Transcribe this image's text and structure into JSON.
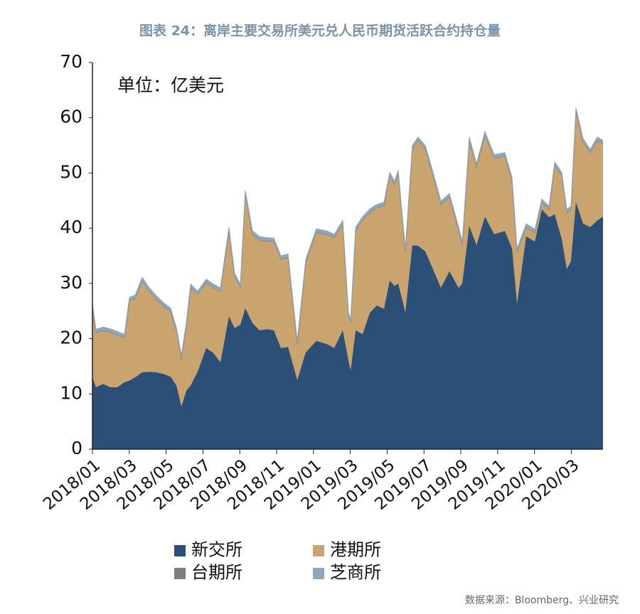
{
  "chart_data": {
    "type": "stacked_area",
    "title": "图表 24：离岸主要交易所美元兑人民币期货活跃合约持仓量",
    "annotation": "单位：亿美元",
    "source": "数据来源：Bloomberg、兴业研究",
    "x": [
      0,
      0.19,
      0.58,
      0.97,
      1.35,
      1.74,
      2.01,
      2.32,
      2.7,
      3.09,
      3.47,
      3.86,
      4.25,
      4.56,
      4.83,
      5.1,
      5.33,
      5.71,
      6.18,
      6.56,
      6.95,
      7.41,
      7.72,
      8.03,
      8.3,
      8.69,
      9.07,
      9.46,
      9.85,
      10.23,
      10.62,
      11.12,
      11.58,
      12.16,
      12.74,
      13.13,
      13.59,
      13.9,
      14.02,
      14.29,
      14.67,
      15.06,
      15.44,
      15.83,
      16.14,
      16.41,
      16.6,
      16.99,
      17.37,
      17.68,
      18.07,
      18.46,
      18.92,
      19.38,
      19.88,
      20.08,
      20.46,
      20.85,
      21.31,
      21.81,
      22.39,
      22.78,
      23.05,
      23.55,
      24.02,
      24.4,
      24.79,
      25.1,
      25.48,
      25.75,
      25.98,
      26.25,
      26.64,
      27.03,
      27.41,
      27.72
    ],
    "series": [
      {
        "name": "新交所",
        "color": "#2b4f77",
        "values": [
          13,
          11.2,
          11.8,
          11.2,
          11.2,
          12.1,
          12.4,
          13,
          13.9,
          14,
          13.9,
          13.6,
          13.1,
          11.5,
          7.7,
          10.6,
          11.5,
          14,
          18.3,
          17.4,
          15.7,
          24,
          21.9,
          22.5,
          25.5,
          22.8,
          21.5,
          21.7,
          21.5,
          18.3,
          18.5,
          12.5,
          17.5,
          19.6,
          19,
          18.3,
          21.5,
          16,
          14.2,
          21.5,
          20.8,
          24.7,
          26,
          25.4,
          30.5,
          29.5,
          30,
          24.7,
          36.9,
          36.8,
          35.8,
          32.8,
          29.2,
          32.2,
          29.2,
          30,
          40.4,
          36.9,
          42.1,
          38.9,
          39.5,
          36.3,
          26.3,
          38.5,
          37.6,
          43.4,
          42,
          42.5,
          38,
          32.6,
          34,
          44.7,
          40.8,
          40.2,
          41.4,
          42.1
        ]
      },
      {
        "name": "港期所",
        "color": "#c9a46e",
        "values": [
          12.6,
          9.8,
          9.6,
          9.9,
          9.4,
          8.0,
          14.4,
          14.2,
          16.5,
          14.5,
          13.2,
          12.2,
          11.7,
          9.8,
          8.6,
          11.7,
          17.7,
          13.9,
          11.8,
          11.8,
          12.8,
          15.5,
          9.2,
          6.7,
          20.6,
          16.0,
          16.3,
          15.9,
          16.0,
          16.0,
          16.1,
          6.4,
          16.2,
          19.6,
          19.8,
          19.9,
          19.2,
          8.0,
          8.6,
          18.0,
          20.6,
          18.1,
          17.6,
          18.6,
          18.9,
          18.3,
          19.8,
          10.9,
          17.4,
          19.0,
          18.5,
          17.0,
          15.0,
          13.4,
          10.3,
          6.9,
          15.4,
          14.1,
          14.7,
          13.7,
          13.5,
          12.2,
          9.3,
          1.6,
          1.5,
          1.2,
          1.3,
          8.8,
          11.4,
          10.1,
          9.3,
          16.4,
          14.7,
          13.4,
          14.4,
          13.1
        ]
      },
      {
        "name": "台期所",
        "color": "#7f7f7f",
        "values": [
          0.1,
          0.1,
          0.1,
          0.1,
          0.1,
          0.1,
          0.1,
          0.1,
          0.1,
          0.1,
          0.1,
          0.1,
          0.1,
          0.1,
          0.1,
          0.1,
          0.1,
          0.1,
          0.1,
          0.1,
          0.1,
          0.1,
          0.1,
          0.1,
          0.1,
          0.1,
          0.1,
          0.1,
          0.1,
          0.1,
          0.1,
          0.1,
          0.1,
          0.1,
          0.1,
          0.1,
          0.1,
          0.1,
          0.1,
          0.1,
          0.1,
          0.1,
          0.1,
          0.1,
          0.1,
          0.1,
          0.1,
          0.1,
          0.1,
          0.1,
          0.1,
          0.1,
          0.1,
          0.1,
          0.1,
          0.1,
          0.1,
          0.1,
          0.1,
          0.1,
          0.1,
          0.1,
          0.1,
          0.1,
          0.1,
          0.1,
          0.1,
          0.1,
          0.1,
          0.1,
          0.1,
          0.1,
          0.1,
          0.1,
          0.1,
          0.1
        ]
      },
      {
        "name": "芝商所",
        "color": "#8ea7bd",
        "values": [
          0.6,
          0.6,
          0.6,
          0.6,
          0.6,
          0.6,
          0.6,
          0.6,
          0.6,
          0.6,
          0.6,
          0.6,
          0.6,
          0.6,
          0.6,
          0.6,
          0.6,
          0.6,
          0.6,
          0.6,
          0.6,
          0.6,
          0.6,
          0.6,
          0.6,
          0.6,
          0.6,
          0.6,
          0.6,
          0.6,
          0.6,
          0.6,
          0.6,
          0.6,
          0.6,
          0.6,
          0.6,
          0.6,
          0.6,
          0.6,
          0.6,
          0.6,
          0.6,
          0.6,
          0.6,
          0.6,
          0.6,
          0.6,
          0.6,
          0.6,
          0.6,
          0.6,
          0.6,
          0.6,
          0.6,
          0.6,
          0.6,
          0.6,
          0.6,
          0.6,
          0.6,
          0.6,
          0.6,
          0.6,
          0.6,
          0.6,
          0.6,
          0.6,
          0.6,
          0.6,
          0.6,
          0.6,
          0.6,
          0.6,
          0.6,
          0.6
        ]
      }
    ],
    "xlim": [
      0,
      27.72
    ],
    "xticks": [
      {
        "value": 0,
        "label": "2018/01"
      },
      {
        "value": 2,
        "label": "2018/03"
      },
      {
        "value": 4,
        "label": "2018/05"
      },
      {
        "value": 6,
        "label": "2018/07"
      },
      {
        "value": 8,
        "label": "2018/09"
      },
      {
        "value": 10,
        "label": "2018/11"
      },
      {
        "value": 12,
        "label": "2019/01"
      },
      {
        "value": 14,
        "label": "2019/03"
      },
      {
        "value": 16,
        "label": "2019/05"
      },
      {
        "value": 18,
        "label": "2019/07"
      },
      {
        "value": 20,
        "label": "2019/09"
      },
      {
        "value": 22,
        "label": "2019/11"
      },
      {
        "value": 24,
        "label": "2020/01"
      },
      {
        "value": 26,
        "label": "2020/03"
      }
    ],
    "ylim": [
      0,
      70
    ],
    "yticks": [
      0,
      10,
      20,
      30,
      40,
      50,
      60,
      70
    ],
    "grid": false
  }
}
